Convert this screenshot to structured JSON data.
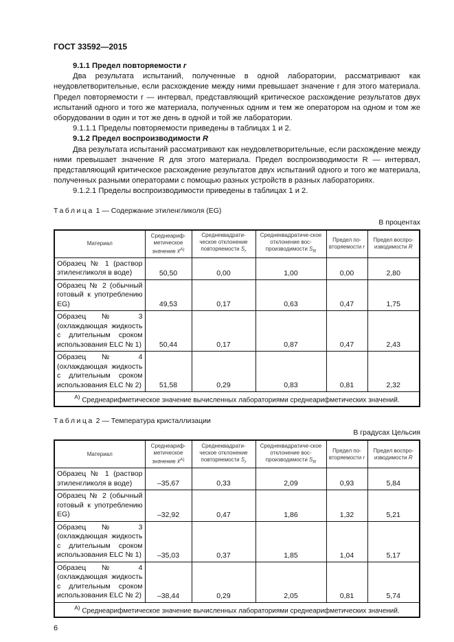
{
  "header": {
    "title": "ГОСТ 33592—2015"
  },
  "sections": [
    {
      "type": "h",
      "num": "9.1.1 Предел повторяемости ",
      "var": "r"
    },
    {
      "type": "p",
      "text": "Два результата испытаний, полученные в одной лаборатории, рассматривают как неудовлетворительные, если расхождение между ними превышает значение r для этого материала. Предел повторяемости r — интервал, представляющий критическое расхождение результатов двух испытаний одного и того же материала, полученных одним и тем же оператором на одном и том же оборудовании в один и тот же день в одной и той же лаборатории."
    },
    {
      "type": "p",
      "text": "9.1.1.1 Пределы повторяемости приведены в таблицах 1 и 2."
    },
    {
      "type": "h",
      "num": "9.1.2 Предел воспроизводимости ",
      "var": "R"
    },
    {
      "type": "p",
      "text": "Два результата испытаний рассматривают как неудовлетворительные, если расхождение между ними превышает значение R для этого материала. Предел воспроизводимости R — интервал, представляющий критическое расхождение результатов двух испытаний одного и того же материала, полученных разными операторами с помощью разных устройств в разных лабораториях."
    },
    {
      "type": "p",
      "text": "9.1.2.1 Пределы воспроизводимости приведены в таблицах 1 и 2."
    }
  ],
  "columns": [
    {
      "text": "Материал",
      "sym": "",
      "sup": ""
    },
    {
      "text": "Среднеариф-метическое значение ",
      "sym": "x̄",
      "sup": "A)"
    },
    {
      "text": "Среднеквадрати-ческое отклонение повторяемости ",
      "sym": "Sr",
      "sup": ""
    },
    {
      "text": "Среднеквадратиче-ское отклонение вос-производимости ",
      "sym": "SR",
      "sup": ""
    },
    {
      "text": "Предел по-вторяемости ",
      "sym": "r",
      "sup": ""
    },
    {
      "text": "Предел воспро-изводимости ",
      "sym": "R",
      "sup": ""
    }
  ],
  "tables": [
    {
      "caption_word": "Таблица",
      "caption_rest": " 1 — Содержание этиленгликоля (EG)",
      "units": "В процентах",
      "rows": [
        [
          "Образец № 1 (раствор этиленгликоля в воде)",
          "50,50",
          "0,00",
          "1,00",
          "0,00",
          "2,80"
        ],
        [
          "Образец № 2 (обычный готовый к употреблению EG)",
          "49,53",
          "0,17",
          "0,63",
          "0,47",
          "1,75"
        ],
        [
          "Образец № 3 (охлаждающая жидкость с длительным сроком использования ELC № 1)",
          "50,44",
          "0,17",
          "0,87",
          "0,47",
          "2,43"
        ],
        [
          "Образец № 4 (охлаждающая жидкость с длительным сроком использования ELC № 2)",
          "51,58",
          "0,29",
          "0,83",
          "0,81",
          "2,32"
        ]
      ],
      "footnote_sup": "A)",
      "footnote": " Среднеарифметическое значение вычисленных лабораториями среднеарифметических значений."
    },
    {
      "caption_word": "Таблица",
      "caption_rest": " 2 — Температура кристаллизации",
      "units": "В градусах Цельсия",
      "rows": [
        [
          "Образец № 1 (раствор этиленгликоля в воде)",
          "–35,67",
          "0,33",
          "2,09",
          "0,93",
          "5,84"
        ],
        [
          "Образец № 2 (обычный готовый к употреблению EG)",
          "–32,92",
          "0,47",
          "1,86",
          "1,32",
          "5,21"
        ],
        [
          "Образец № 3 (охлаждающая жидкость с длительным сроком использования ELC № 1)",
          "–35,03",
          "0,37",
          "1,85",
          "1,04",
          "5,17"
        ],
        [
          "Образец № 4 (охлаждающая жидкость с длительным сроком использования ELC № 2)",
          "–38,44",
          "0,29",
          "2,05",
          "0,81",
          "5,74"
        ]
      ],
      "footnote_sup": "A)",
      "footnote": " Среднеарифметическое значение вычисленных лабораториями среднеарифметических значений."
    }
  ],
  "page_number": "6"
}
